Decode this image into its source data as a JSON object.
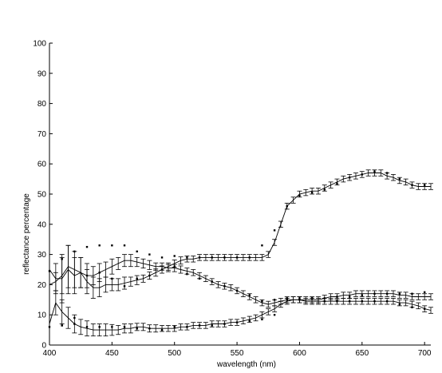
{
  "chart_data": {
    "type": "line",
    "xlabel": "wavelength (nm)",
    "ylabel": "reflectance percentage",
    "xlim": [
      400,
      705
    ],
    "ylim": [
      0,
      100
    ],
    "grid": false,
    "xticks": [
      400,
      450,
      500,
      550,
      600,
      650,
      700
    ],
    "yticks": [
      0,
      10,
      20,
      30,
      40,
      50,
      60,
      70,
      80,
      90,
      100
    ],
    "colors": {
      "line": "#000000",
      "errorbar": "#000000",
      "marker": "#000000",
      "axis": "#000000"
    },
    "series": [
      {
        "x": [
          400,
          405,
          410,
          415,
          420,
          425,
          430,
          435,
          440,
          445,
          450,
          455,
          460,
          465,
          470,
          475,
          480,
          485,
          490,
          495,
          500,
          505,
          510,
          515,
          520,
          525,
          530,
          535,
          540,
          545,
          550,
          555,
          560,
          565,
          570,
          575,
          580,
          585,
          590,
          595,
          600,
          605,
          610,
          615,
          620,
          625,
          630,
          635,
          640,
          645,
          650,
          655,
          660,
          665,
          670,
          675,
          680,
          685,
          690,
          695,
          700,
          705
        ],
        "y": [
          25,
          22,
          22,
          25,
          23,
          24,
          21,
          19,
          19,
          20,
          20,
          20,
          20.5,
          21,
          21.5,
          22,
          23,
          24,
          25,
          26,
          27,
          28,
          28.5,
          28.5,
          29,
          29,
          29,
          29,
          29,
          29,
          29,
          29,
          29,
          29,
          29,
          30,
          34,
          40,
          46,
          48,
          50,
          50.5,
          51,
          51,
          52,
          53,
          54,
          55,
          55.5,
          56,
          56.5,
          57,
          57,
          57,
          56,
          55.5,
          54.5,
          54,
          53,
          52.5,
          52.5,
          52.5
        ],
        "error": [
          0,
          5,
          8,
          8,
          6,
          5,
          4,
          3.5,
          3,
          2.5,
          2,
          2,
          2,
          1.5,
          1.5,
          1.2,
          1.2,
          1.2,
          1.2,
          1.2,
          1.2,
          1.2,
          1,
          1,
          1,
          1,
          1,
          1,
          1,
          1,
          1,
          1,
          1,
          1,
          1,
          1,
          1,
          1,
          1,
          1,
          1,
          1,
          1,
          1,
          1,
          1,
          1,
          1,
          1,
          1,
          1,
          1,
          1,
          1,
          1,
          1,
          1,
          1,
          1,
          1,
          1,
          1
        ]
      },
      {
        "x": [
          400,
          405,
          410,
          415,
          420,
          425,
          430,
          435,
          440,
          445,
          450,
          455,
          460,
          465,
          470,
          475,
          480,
          485,
          490,
          495,
          500,
          505,
          510,
          515,
          520,
          525,
          530,
          535,
          540,
          545,
          550,
          555,
          560,
          565,
          570,
          575,
          580,
          585,
          590,
          595,
          600,
          605,
          610,
          615,
          620,
          625,
          630,
          635,
          640,
          645,
          650,
          655,
          660,
          665,
          670,
          675,
          680,
          685,
          690,
          695,
          700,
          705
        ],
        "y": [
          20,
          21,
          23,
          26,
          25,
          24,
          23,
          23,
          24,
          25,
          26,
          27,
          28,
          28,
          27.5,
          27,
          26.5,
          26,
          26,
          25.5,
          25.5,
          25,
          24.5,
          24,
          23,
          22,
          21,
          20,
          19.5,
          19,
          18,
          17,
          16,
          15,
          14,
          13.5,
          14,
          14.5,
          15,
          15,
          15,
          14.5,
          14.5,
          14.5,
          14.5,
          14.5,
          14.5,
          14.5,
          14.5,
          14.5,
          14.5,
          14.5,
          14.5,
          14.5,
          14.5,
          14.5,
          14,
          14,
          13.5,
          13,
          12,
          11.5
        ],
        "error": [
          0,
          3,
          6,
          7,
          6,
          5,
          4,
          3,
          3,
          2.5,
          2.5,
          2,
          2,
          2,
          1.5,
          1.5,
          1.5,
          1.2,
          1.2,
          1.2,
          1.2,
          1.2,
          1,
          1,
          1,
          1,
          1,
          1,
          1,
          1,
          1,
          1,
          1,
          1,
          1,
          1,
          1,
          1,
          1,
          1,
          1,
          1,
          1,
          1,
          1,
          1,
          1,
          1,
          1,
          1,
          1,
          1,
          1,
          1,
          1,
          1,
          1,
          1,
          1,
          1,
          1,
          1
        ]
      },
      {
        "x": [
          400,
          405,
          410,
          415,
          420,
          425,
          430,
          435,
          440,
          445,
          450,
          455,
          460,
          465,
          470,
          475,
          480,
          485,
          490,
          495,
          500,
          505,
          510,
          515,
          520,
          525,
          530,
          535,
          540,
          545,
          550,
          555,
          560,
          565,
          570,
          575,
          580,
          585,
          590,
          595,
          600,
          605,
          610,
          615,
          620,
          625,
          630,
          635,
          640,
          645,
          650,
          655,
          660,
          665,
          670,
          675,
          680,
          685,
          690,
          695,
          700,
          705
        ],
        "y": [
          7,
          14,
          11,
          9,
          7,
          6,
          5.5,
          5,
          5,
          5,
          5,
          5,
          5.5,
          5.5,
          6,
          6,
          5.5,
          5.5,
          5.5,
          5.5,
          5.5,
          6,
          6,
          6.5,
          6.5,
          6.5,
          7,
          7,
          7,
          7.5,
          7.5,
          8,
          8.5,
          9,
          10,
          11,
          12,
          13.5,
          14.5,
          15,
          15,
          15,
          15,
          15,
          15.5,
          16,
          16,
          16.5,
          16.5,
          17,
          17,
          17,
          17,
          17,
          17,
          17,
          16.5,
          16.5,
          16,
          16,
          16,
          16
        ],
        "error": [
          0,
          4,
          4,
          3.5,
          3,
          2.5,
          2.5,
          2,
          2,
          2,
          1.8,
          1.5,
          1.5,
          1.5,
          1.2,
          1.2,
          1.2,
          1.2,
          1,
          1,
          1,
          1,
          1,
          1,
          1,
          1,
          1,
          1,
          1,
          1,
          1,
          1,
          1,
          1,
          1,
          1,
          1,
          1,
          1,
          1,
          1,
          1,
          1,
          1,
          1,
          1,
          1,
          1,
          1,
          1,
          1,
          1,
          1,
          1,
          1,
          1,
          1,
          1,
          1,
          1,
          1,
          1
        ]
      }
    ],
    "markers": [
      {
        "x": [
          400,
          410,
          420,
          430,
          440,
          450,
          460,
          470,
          480,
          490,
          500,
          510,
          520,
          530,
          540,
          550,
          560,
          570,
          580,
          590,
          600,
          610,
          620,
          630,
          640,
          650,
          660,
          670,
          680,
          690,
          700
        ],
        "y": [
          24.5,
          28.5,
          31,
          32.5,
          33,
          33,
          33,
          31,
          30,
          29,
          29.5,
          29,
          29,
          29,
          29,
          29,
          29,
          33,
          38,
          46,
          49.5,
          50.5,
          51.5,
          53.5,
          55.5,
          56.5,
          57.5,
          57,
          55,
          53,
          53
        ]
      },
      {
        "x": [
          400,
          410,
          420,
          430,
          440,
          450,
          460,
          470,
          480,
          490,
          500,
          510,
          520,
          530,
          540,
          550,
          560,
          570,
          580,
          590,
          600,
          610,
          620,
          630,
          640,
          650,
          660,
          670,
          680,
          690,
          700
        ],
        "y": [
          6,
          6.5,
          9,
          23,
          24,
          22,
          19.5,
          22,
          23,
          25,
          26,
          23.5,
          22,
          21,
          19.5,
          18,
          16.5,
          14.5,
          15,
          15.5,
          15.5,
          15.5,
          14.5,
          14.5,
          14.5,
          14.5,
          14.5,
          14.5,
          13.5,
          12.5,
          12
        ]
      },
      {
        "x": [
          410,
          420,
          430,
          440,
          450,
          460,
          470,
          480,
          490,
          500,
          510,
          520,
          530,
          540,
          550,
          560,
          570,
          580,
          590,
          600,
          610,
          620,
          630,
          640,
          650,
          660,
          670,
          680,
          690,
          700
        ],
        "y": [
          6.5,
          7,
          6,
          6,
          6,
          6,
          5.5,
          5.5,
          5,
          6,
          6,
          6.5,
          6.5,
          7,
          7.5,
          8,
          8.5,
          10,
          15,
          15,
          15.5,
          15.5,
          16,
          16,
          16.5,
          17,
          17,
          17,
          17,
          17.5
        ]
      }
    ]
  }
}
